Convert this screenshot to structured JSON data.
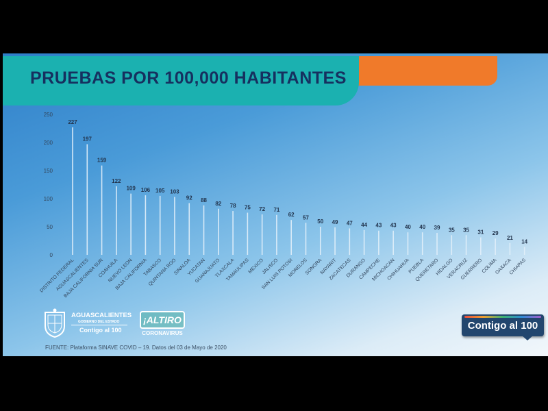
{
  "banner": {
    "title": "PRUEBAS POR 100,000 HABITANTES"
  },
  "source": "FUENTE: Plataforma SINAVE COVID – 19. Datos del 03 de Mayo de 2020",
  "logos": {
    "aguascalientes_name": "AGUASCALIENTES",
    "aguascalientes_gov": "GOBIERNO DEL ESTADO",
    "aguascalientes_slogan": "Contigo al 100",
    "altiro": "¡ALTIRO",
    "altiro_sub": "CORONAVIRUS",
    "badge": "Contigo al 100"
  },
  "colors": {
    "title_bg": "#1bb1b0",
    "title_text": "#16305f",
    "accent_orange": "#f07a2a",
    "badge_bg": "#22466e",
    "bar_line": "#e3f0fa",
    "value_text": "#22344d",
    "tick_text": "#33465c"
  },
  "chart_data": {
    "type": "bar",
    "title": "PRUEBAS POR 100,000 HABITANTES",
    "xlabel": "",
    "ylabel": "",
    "ylim": [
      0,
      250
    ],
    "yticks": [
      0,
      50,
      100,
      150,
      200,
      250
    ],
    "grid": false,
    "legend": "none",
    "categories": [
      "DISTRITO FEDERAL",
      "AGUASCALIENTES",
      "BAJA CALIFORNIA SUR",
      "COAHUILA",
      "NUEVO LEON",
      "BAJA CALIFORNIA",
      "TABASCO",
      "QUINTANA ROO",
      "SINALOA",
      "YUCATAN",
      "GUANAJUATO",
      "TLAXCALA",
      "TAMAULIPAS",
      "MEXICO",
      "JALISCO",
      "SAN LUIS POTOSI",
      "MORELOS",
      "SONORA",
      "NAYARIT",
      "ZACATECAS",
      "DURANGO",
      "CAMPECHE",
      "MICHOACAN",
      "CHIHUAHUA",
      "PUEBLA",
      "QUERETARO",
      "HIDALGO",
      "VERACRUZ",
      "GUERRERO",
      "COLIMA",
      "OAXACA",
      "CHIAPAS"
    ],
    "values": [
      227,
      197,
      159,
      122,
      109,
      106,
      105,
      103,
      92,
      88,
      82,
      78,
      75,
      72,
      71,
      62,
      57,
      50,
      49,
      47,
      44,
      43,
      43,
      40,
      40,
      39,
      35,
      35,
      31,
      29,
      21,
      14
    ]
  }
}
